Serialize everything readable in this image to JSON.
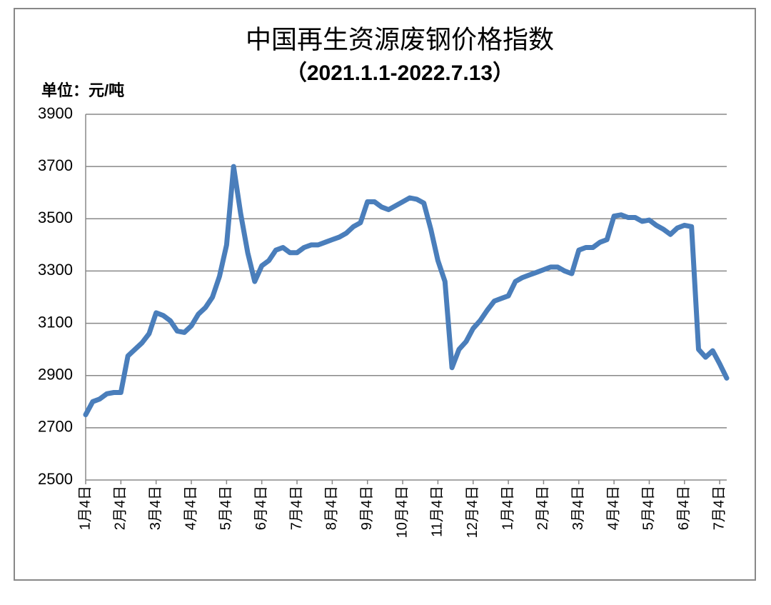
{
  "chart_data": {
    "type": "line",
    "title": "中国再生资源废钢价格指数",
    "subtitle": "（2021.1.1-2022.7.13）",
    "y_axis_label": "单位：元/吨",
    "categories": [
      "1月4日",
      null,
      null,
      null,
      null,
      "2月4日",
      null,
      null,
      null,
      null,
      "3月4日",
      null,
      null,
      null,
      null,
      "4月4日",
      null,
      null,
      null,
      null,
      "5月4日",
      null,
      null,
      null,
      null,
      "6月4日",
      null,
      null,
      null,
      null,
      "7月4日",
      null,
      null,
      null,
      null,
      "8月4日",
      null,
      null,
      null,
      null,
      "9月4日",
      null,
      null,
      null,
      null,
      "10月4日",
      null,
      null,
      null,
      null,
      "11月4日",
      null,
      null,
      null,
      null,
      "12月4日",
      null,
      null,
      null,
      null,
      "1月4日",
      null,
      null,
      null,
      null,
      "2月4日",
      null,
      null,
      null,
      null,
      "3月4日",
      null,
      null,
      null,
      null,
      "4月4日",
      null,
      null,
      null,
      null,
      "5月4日",
      null,
      null,
      null,
      null,
      "6月4日",
      null,
      null,
      null,
      null,
      "7月4日",
      null
    ],
    "values": [
      2750,
      2800,
      2810,
      2830,
      2835,
      2835,
      2975,
      3000,
      3025,
      3060,
      3140,
      3130,
      3110,
      3070,
      3065,
      3090,
      3135,
      3160,
      3200,
      3280,
      3400,
      3700,
      3520,
      3370,
      3260,
      3320,
      3340,
      3380,
      3390,
      3370,
      3370,
      3390,
      3400,
      3400,
      3410,
      3420,
      3430,
      3445,
      3470,
      3485,
      3565,
      3565,
      3545,
      3535,
      3550,
      3565,
      3580,
      3575,
      3560,
      3460,
      3340,
      3260,
      2930,
      3000,
      3030,
      3080,
      3110,
      3150,
      3185,
      3195,
      3205,
      3260,
      3275,
      3285,
      3295,
      3305,
      3315,
      3315,
      3300,
      3290,
      3380,
      3390,
      3390,
      3410,
      3420,
      3510,
      3515,
      3505,
      3505,
      3490,
      3495,
      3475,
      3460,
      3440,
      3465,
      3475,
      3470,
      3000,
      2970,
      2995,
      2945,
      2890
    ],
    "color": "#4a7ebb",
    "ylim": [
      2500,
      3900
    ],
    "yticks": [
      2500,
      2700,
      2900,
      3100,
      3300,
      3500,
      3700,
      3900
    ],
    "grid": true
  }
}
